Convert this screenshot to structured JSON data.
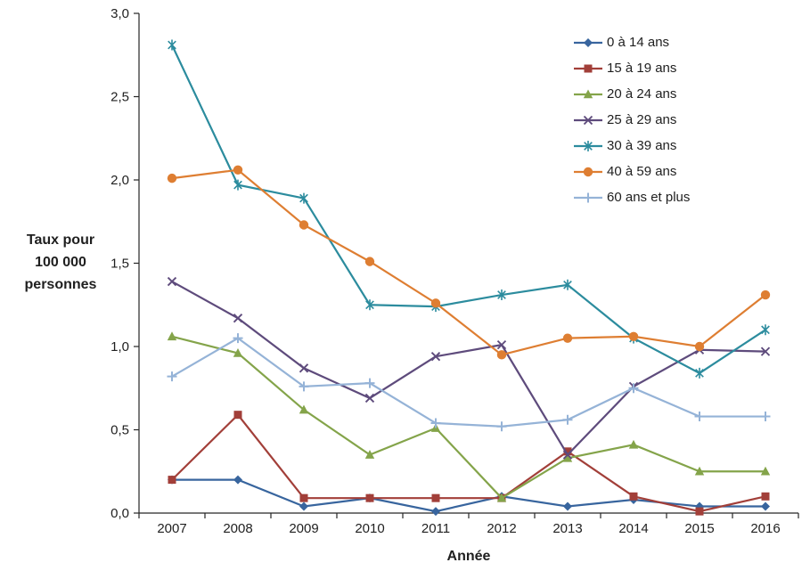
{
  "colors": {
    "axis": "#262626",
    "text": "#1f1f1f",
    "background": "#ffffff"
  },
  "chart_data": {
    "type": "line",
    "title": "",
    "xlabel": "Année",
    "ylabel": "Taux pour 100 000 personnes",
    "x": [
      "2007",
      "2008",
      "2009",
      "2010",
      "2011",
      "2012",
      "2013",
      "2014",
      "2015",
      "2016"
    ],
    "ylim": [
      0,
      3.0
    ],
    "y_ticks": [
      {
        "value": 0.0,
        "label": "0,0"
      },
      {
        "value": 0.5,
        "label": "0,5"
      },
      {
        "value": 1.0,
        "label": "1,0"
      },
      {
        "value": 1.5,
        "label": "1,5"
      },
      {
        "value": 2.0,
        "label": "2,0"
      },
      {
        "value": 2.5,
        "label": "2,5"
      },
      {
        "value": 3.0,
        "label": "3,0"
      }
    ],
    "grid": false,
    "legend_position": "top-right-inside",
    "series": [
      {
        "name": "0 à 14 ans",
        "color": "#38659E",
        "marker": "diamond",
        "values": [
          0.2,
          0.2,
          0.04,
          0.09,
          0.01,
          0.1,
          0.04,
          0.08,
          0.04,
          0.04
        ]
      },
      {
        "name": "15 à 19 ans",
        "color": "#A23F39",
        "marker": "square",
        "values": [
          0.2,
          0.59,
          0.09,
          0.09,
          0.09,
          0.09,
          0.37,
          0.1,
          0.01,
          0.1
        ]
      },
      {
        "name": "20 à 24 ans",
        "color": "#84A44A",
        "marker": "triangle",
        "values": [
          1.06,
          0.96,
          0.62,
          0.35,
          0.51,
          0.09,
          0.33,
          0.41,
          0.25,
          0.25
        ]
      },
      {
        "name": "25 à 29 ans",
        "color": "#5E4B7C",
        "marker": "x",
        "values": [
          1.39,
          1.17,
          0.87,
          0.69,
          0.94,
          1.01,
          0.35,
          0.76,
          0.98,
          0.97
        ]
      },
      {
        "name": "30 à 39 ans",
        "color": "#2C8C9E",
        "marker": "star",
        "values": [
          2.81,
          1.97,
          1.89,
          1.25,
          1.24,
          1.31,
          1.37,
          1.05,
          0.84,
          1.1
        ]
      },
      {
        "name": "40 à 59 ans",
        "color": "#DE7E32",
        "marker": "circle",
        "values": [
          2.01,
          2.06,
          1.73,
          1.51,
          1.26,
          0.95,
          1.05,
          1.06,
          1.0,
          1.31
        ]
      },
      {
        "name": "60 ans et plus",
        "color": "#95B3D7",
        "marker": "plus",
        "values": [
          0.82,
          1.05,
          0.76,
          0.78,
          0.54,
          0.52,
          0.56,
          0.75,
          0.58,
          0.58
        ]
      }
    ]
  }
}
